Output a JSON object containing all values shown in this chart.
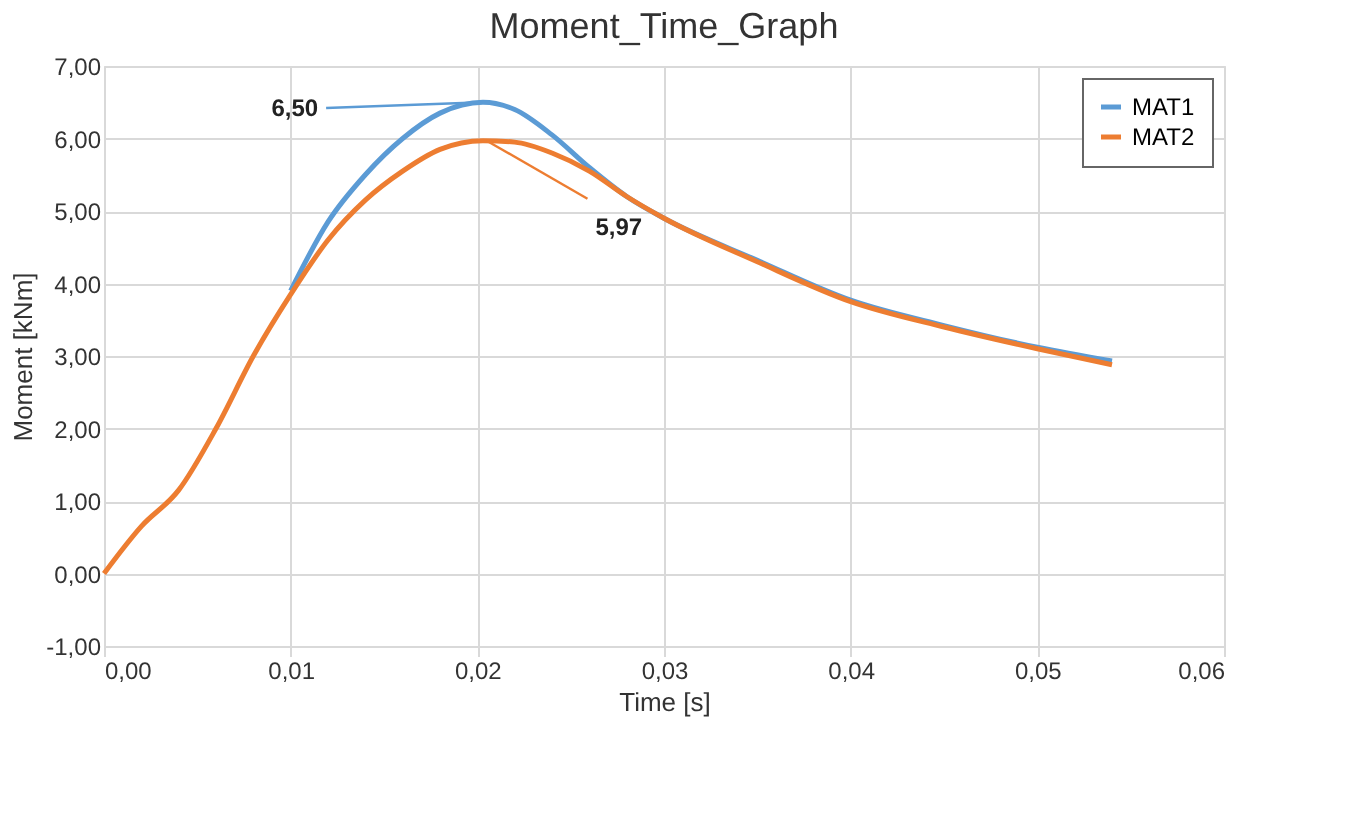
{
  "chart_data": {
    "type": "line",
    "title": "Moment_Time_Graph",
    "xlabel": "Time [s]",
    "ylabel": "Moment [kNm]",
    "x": [
      0,
      0.002,
      0.004,
      0.006,
      0.008,
      0.01,
      0.012,
      0.014,
      0.016,
      0.018,
      0.0203,
      0.022,
      0.024,
      0.026,
      0.028,
      0.03,
      0.035,
      0.04,
      0.045,
      0.05,
      0.054
    ],
    "series": [
      {
        "name": "MAT1",
        "color": "#5b9bd5",
        "values": [
          null,
          null,
          null,
          null,
          null,
          3.9,
          4.85,
          5.5,
          6.0,
          6.35,
          6.5,
          6.4,
          6.05,
          5.6,
          5.2,
          4.9,
          4.32,
          3.77,
          3.42,
          3.12,
          2.93
        ]
      },
      {
        "name": "MAT2",
        "color": "#ed7d31",
        "values": [
          0,
          0.65,
          1.15,
          2.0,
          3.0,
          3.85,
          4.6,
          5.15,
          5.55,
          5.85,
          5.97,
          5.95,
          5.8,
          5.55,
          5.2,
          4.9,
          4.3,
          3.75,
          3.4,
          3.1,
          2.88
        ]
      }
    ],
    "xlim": [
      0,
      0.06
    ],
    "ylim": [
      -1,
      7
    ],
    "xticks": [
      {
        "value": 0,
        "label": "0,00"
      },
      {
        "value": 0.01,
        "label": "0,01"
      },
      {
        "value": 0.02,
        "label": "0,02"
      },
      {
        "value": 0.03,
        "label": "0,03"
      },
      {
        "value": 0.04,
        "label": "0,04"
      },
      {
        "value": 0.05,
        "label": "0,05"
      },
      {
        "value": 0.06,
        "label": "0,06"
      }
    ],
    "yticks": [
      {
        "value": -1,
        "label": "-1,00"
      },
      {
        "value": 0,
        "label": "0,00"
      },
      {
        "value": 1,
        "label": "1,00"
      },
      {
        "value": 2,
        "label": "2,00"
      },
      {
        "value": 3,
        "label": "3,00"
      },
      {
        "value": 4,
        "label": "4,00"
      },
      {
        "value": 5,
        "label": "5,00"
      },
      {
        "value": 6,
        "label": "6,00"
      },
      {
        "value": 7,
        "label": "7,00"
      }
    ],
    "annotations": [
      {
        "text": "6,50",
        "x": 0.0203,
        "y": 6.5
      },
      {
        "text": "5,97",
        "x": 0.0205,
        "y": 5.97
      }
    ],
    "grid": true,
    "legend": "top right",
    "marker": "none",
    "line_style": "solid"
  }
}
